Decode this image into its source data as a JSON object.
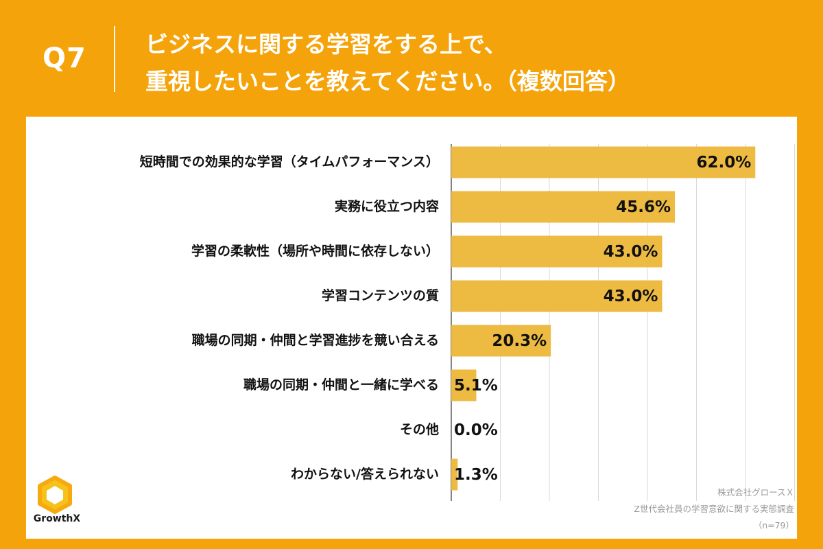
{
  "header": {
    "question_number": "Q7",
    "title_line1": "ビジネスに関する学習をする上で、",
    "title_line2": "重視したいことを教えてください。（複数回答）"
  },
  "chart_data": {
    "type": "bar",
    "orientation": "horizontal",
    "categories": [
      "短時間での効果的な学習（タイムパフォーマンス）",
      "実務に役立つ内容",
      "学習の柔軟性（場所や時間に依存しない）",
      "学習コンテンツの質",
      "職場の同期・仲間と学習進捗を競い合える",
      "職場の同期・仲間と一緒に学べる",
      "その他",
      "わからない/答えられない"
    ],
    "values": [
      62.0,
      45.6,
      43.0,
      43.0,
      20.3,
      5.1,
      0.0,
      1.3
    ],
    "value_labels": [
      "62.0%",
      "45.6%",
      "43.0%",
      "43.0%",
      "20.3%",
      "5.1%",
      "0.0%",
      "1.3%"
    ],
    "xlim": [
      0,
      70
    ],
    "grid": true,
    "bar_color": "#edba42"
  },
  "source": {
    "line1": "株式会社グロースＸ",
    "line2": "Z世代会社員の学習意欲に関する実態調査",
    "line3": "（n=79）"
  },
  "logo": {
    "text": "GrowthX",
    "icon": "growthx-logo-icon"
  },
  "colors": {
    "background": "#f5a30b",
    "panel": "#ffffff",
    "bar": "#edba42"
  }
}
